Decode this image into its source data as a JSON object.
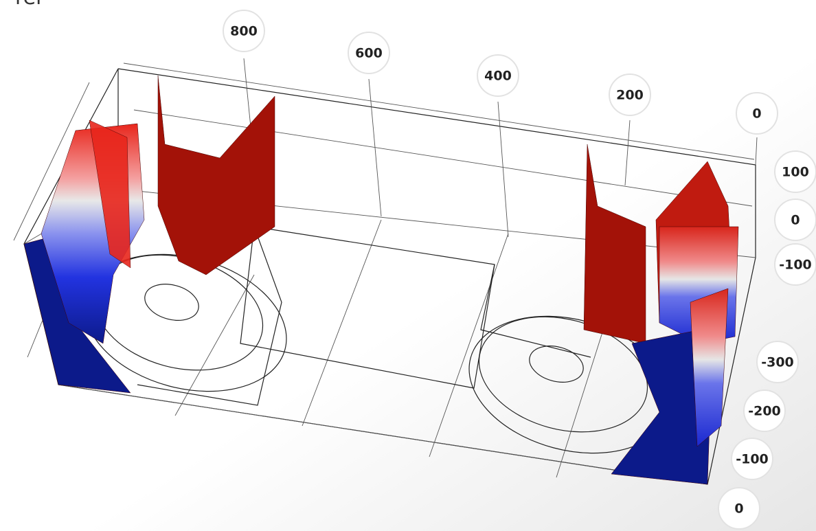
{
  "fragment": "rer",
  "axes": {
    "x": {
      "ticks": [
        "800",
        "600",
        "400",
        "200",
        "0"
      ]
    },
    "z": {
      "ticks": [
        "100",
        "0",
        "-100"
      ]
    },
    "y": {
      "ticks": [
        "-300",
        "-200",
        "-100",
        "0"
      ]
    }
  }
}
